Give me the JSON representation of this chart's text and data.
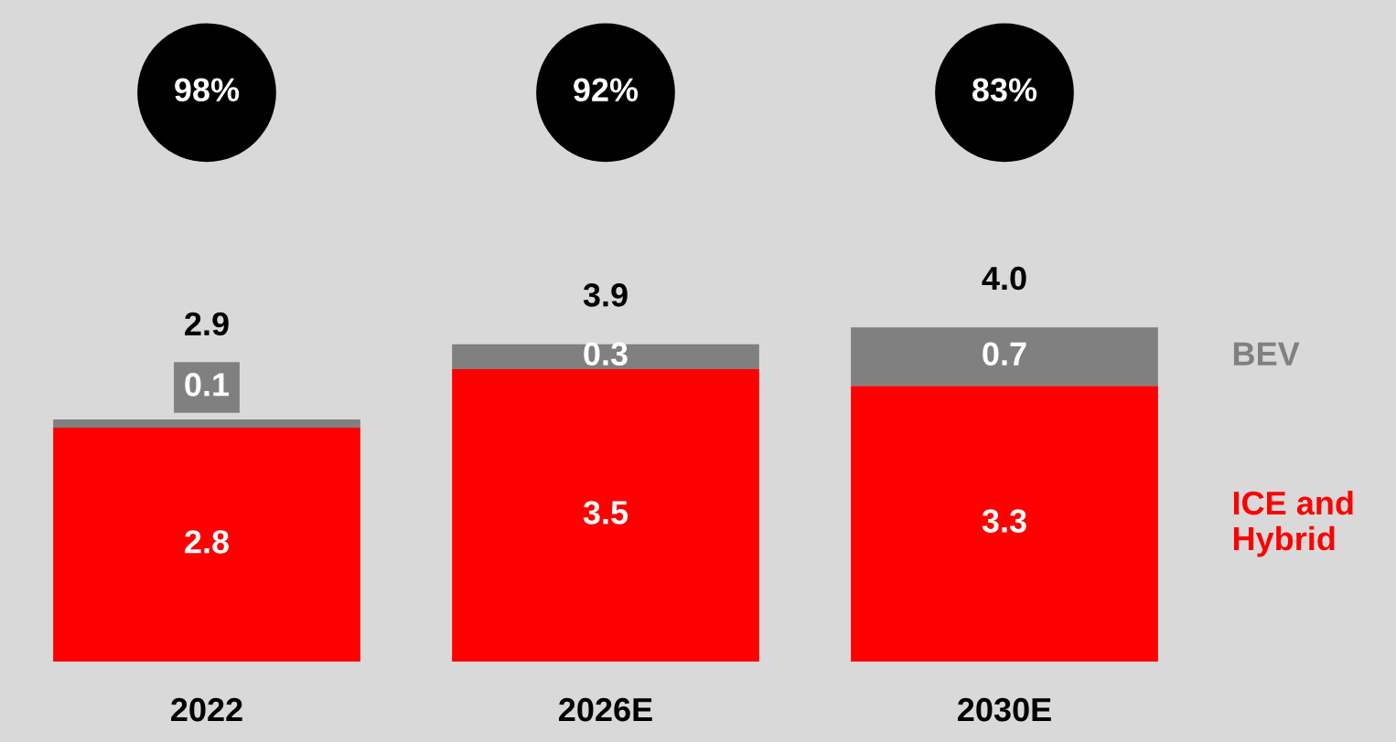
{
  "chart_data": {
    "type": "bar",
    "stacked": true,
    "data_labels": true,
    "categories": [
      "2022",
      "2026E",
      "2030E"
    ],
    "series": [
      {
        "name": "ICE and Hybrid",
        "color": "#ff0000",
        "values": [
          2.8,
          3.5,
          3.3
        ]
      },
      {
        "name": "BEV",
        "color": "#808080",
        "values": [
          0.1,
          0.3,
          0.7
        ]
      }
    ],
    "totals": [
      "2.9",
      "3.9",
      "4.0"
    ],
    "annotations": [
      "98%",
      "92%",
      "83%"
    ],
    "legend": false,
    "grid": false
  }
}
